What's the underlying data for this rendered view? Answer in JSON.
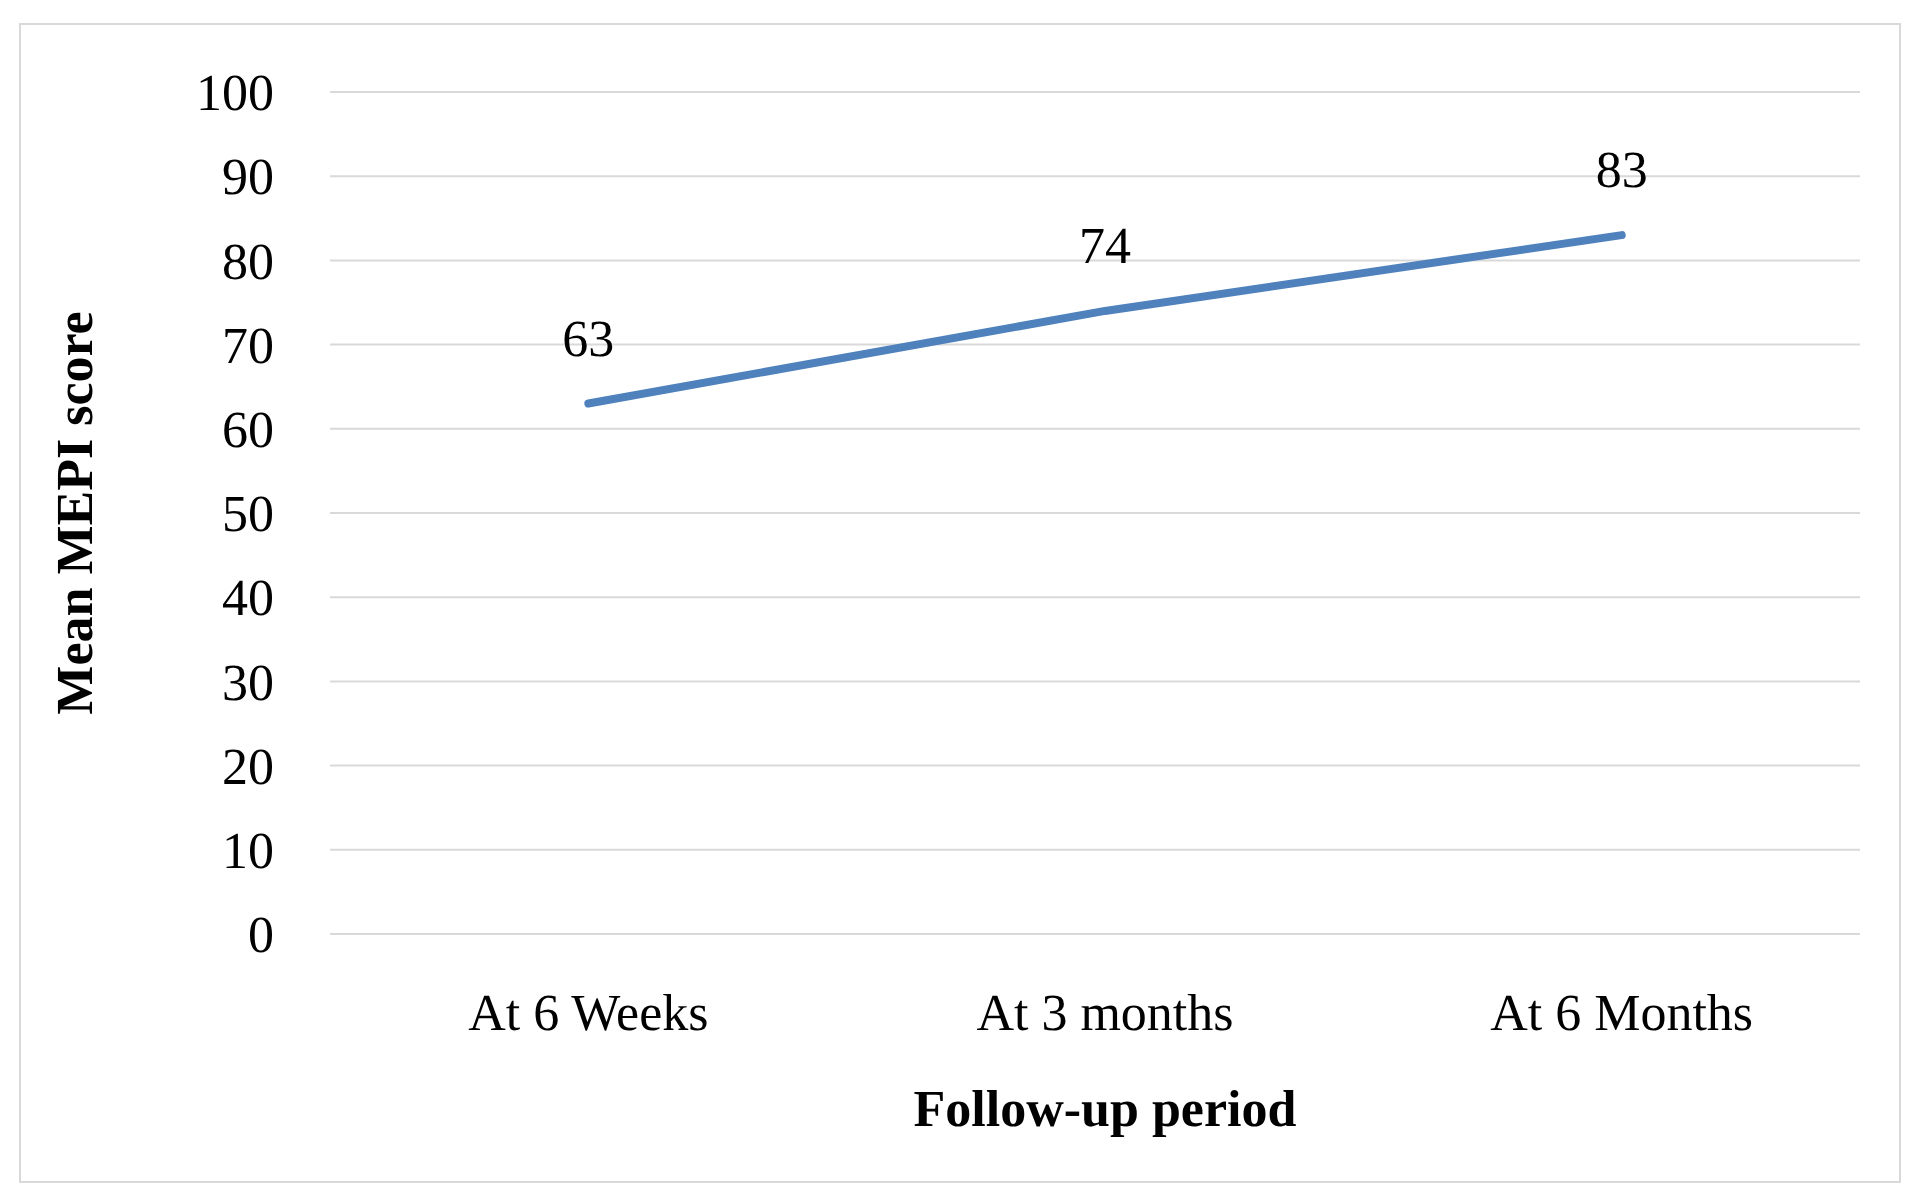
{
  "chart_data": {
    "type": "line",
    "xlabel": "Follow-up period",
    "ylabel": "Mean MEPI score",
    "categories": [
      "At 6 Weeks",
      "At 3 months",
      "At 6 Months"
    ],
    "series": [
      {
        "color": "#4f81bd",
        "values": [
          63,
          74,
          83
        ]
      }
    ],
    "ylim": [
      0,
      100
    ],
    "yticks": [
      0,
      10,
      20,
      30,
      40,
      50,
      60,
      70,
      80,
      90,
      100
    ],
    "grid": "y",
    "data_labels": true,
    "marker": "none",
    "line_style": "solid"
  }
}
